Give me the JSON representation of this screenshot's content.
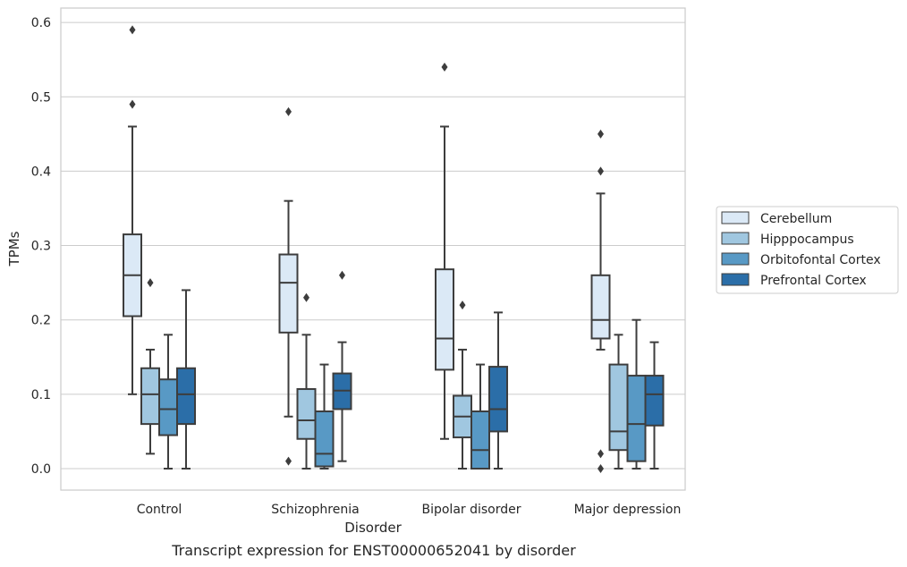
{
  "caption": "Transcript expression for ENST00000652041 by disorder",
  "chart_data": {
    "type": "box",
    "title": "",
    "xlabel": "Disorder",
    "ylabel": "TPMs",
    "ylim": [
      -0.028,
      0.62
    ],
    "yticks": [
      0.0,
      0.1,
      0.2,
      0.3,
      0.4,
      0.5,
      0.6
    ],
    "ytick_labels": [
      "0.0",
      "0.1",
      "0.2",
      "0.3",
      "0.4",
      "0.5",
      "0.6"
    ],
    "grid": "horizontal",
    "legend_placement": "right",
    "categories": [
      "Control",
      "Schizophrenia",
      "Bipolar disorder",
      "Major depression"
    ],
    "series": [
      {
        "name": "Cerebellum",
        "color": "#dbe9f6",
        "boxes": [
          {
            "whislo": 0.1,
            "q1": 0.205,
            "med": 0.26,
            "q3": 0.315,
            "whishi": 0.46,
            "fliers": [
              0.59,
              0.49
            ]
          },
          {
            "whislo": 0.07,
            "q1": 0.183,
            "med": 0.25,
            "q3": 0.288,
            "whishi": 0.36,
            "fliers": [
              0.48,
              0.01
            ]
          },
          {
            "whislo": 0.04,
            "q1": 0.133,
            "med": 0.175,
            "q3": 0.268,
            "whishi": 0.46,
            "fliers": [
              0.54
            ]
          },
          {
            "whislo": 0.16,
            "q1": 0.175,
            "med": 0.2,
            "q3": 0.26,
            "whishi": 0.37,
            "fliers": [
              0.45,
              0.4,
              0.02,
              0.0
            ]
          }
        ]
      },
      {
        "name": "Hipppocampus",
        "color": "#a0c7e0",
        "boxes": [
          {
            "whislo": 0.02,
            "q1": 0.06,
            "med": 0.1,
            "q3": 0.135,
            "whishi": 0.16,
            "fliers": [
              0.25
            ]
          },
          {
            "whislo": 0.0,
            "q1": 0.04,
            "med": 0.065,
            "q3": 0.107,
            "whishi": 0.18,
            "fliers": [
              0.23
            ]
          },
          {
            "whislo": 0.0,
            "q1": 0.042,
            "med": 0.07,
            "q3": 0.098,
            "whishi": 0.16,
            "fliers": [
              0.22
            ]
          },
          {
            "whislo": 0.0,
            "q1": 0.025,
            "med": 0.05,
            "q3": 0.14,
            "whishi": 0.18,
            "fliers": []
          }
        ]
      },
      {
        "name": "Orbitofontal Cortex",
        "color": "#5899c5",
        "boxes": [
          {
            "whislo": 0.0,
            "q1": 0.045,
            "med": 0.08,
            "q3": 0.12,
            "whishi": 0.18,
            "fliers": []
          },
          {
            "whislo": 0.0,
            "q1": 0.003,
            "med": 0.02,
            "q3": 0.077,
            "whishi": 0.14,
            "fliers": []
          },
          {
            "whislo": 0.0,
            "q1": 0.0,
            "med": 0.025,
            "q3": 0.077,
            "whishi": 0.14,
            "fliers": []
          },
          {
            "whislo": 0.0,
            "q1": 0.01,
            "med": 0.06,
            "q3": 0.125,
            "whishi": 0.2,
            "fliers": []
          }
        ]
      },
      {
        "name": "Prefrontal Cortex",
        "color": "#2b6ea8",
        "boxes": [
          {
            "whislo": 0.0,
            "q1": 0.06,
            "med": 0.1,
            "q3": 0.135,
            "whishi": 0.24,
            "fliers": []
          },
          {
            "whislo": 0.01,
            "q1": 0.08,
            "med": 0.105,
            "q3": 0.128,
            "whishi": 0.17,
            "fliers": [
              0.26
            ]
          },
          {
            "whislo": 0.0,
            "q1": 0.05,
            "med": 0.08,
            "q3": 0.137,
            "whishi": 0.21,
            "fliers": []
          },
          {
            "whislo": 0.0,
            "q1": 0.058,
            "med": 0.1,
            "q3": 0.125,
            "whishi": 0.17,
            "fliers": []
          }
        ]
      }
    ]
  }
}
